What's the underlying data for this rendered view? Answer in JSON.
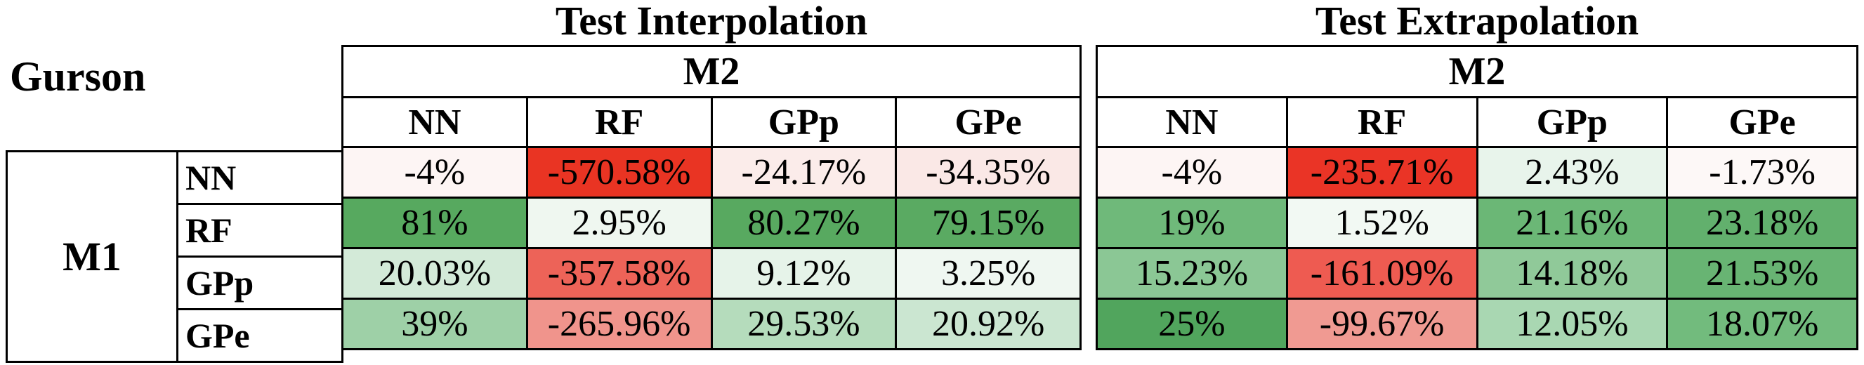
{
  "figure": {
    "model_label": "Gurson",
    "m1_label": "M1",
    "row_labels": [
      "NN",
      "RF",
      "GPp",
      "GPe"
    ]
  },
  "tables": [
    {
      "title": "Test Interpolation",
      "m2_label": "M2",
      "columns": [
        "NN",
        "RF",
        "GPp",
        "GPe"
      ],
      "rows": [
        {
          "label": "NN",
          "cells": [
            {
              "value": "-4%",
              "color": "#fdf5f4"
            },
            {
              "value": "-570.58%",
              "color": "#e93423"
            },
            {
              "value": "-24.17%",
              "color": "#fbecea"
            },
            {
              "value": "-34.35%",
              "color": "#fae8e6"
            }
          ]
        },
        {
          "label": "RF",
          "cells": [
            {
              "value": "81%",
              "color": "#57a95f"
            },
            {
              "value": "2.95%",
              "color": "#eff7f0"
            },
            {
              "value": "80.27%",
              "color": "#58a960"
            },
            {
              "value": "79.15%",
              "color": "#5aaa62"
            }
          ]
        },
        {
          "label": "GPp",
          "cells": [
            {
              "value": "20.03%",
              "color": "#d3ead8"
            },
            {
              "value": "-357.58%",
              "color": "#ed6358"
            },
            {
              "value": "9.12%",
              "color": "#e6f3e9"
            },
            {
              "value": "3.25%",
              "color": "#eff7f1"
            }
          ]
        },
        {
          "label": "GPe",
          "cells": [
            {
              "value": "39%",
              "color": "#9ed0a7"
            },
            {
              "value": "-265.96%",
              "color": "#f0948c"
            },
            {
              "value": "29.53%",
              "color": "#b5dcbc"
            },
            {
              "value": "20.92%",
              "color": "#cbe6d1"
            }
          ]
        }
      ]
    },
    {
      "title": "Test Extrapolation",
      "m2_label": "M2",
      "columns": [
        "NN",
        "RF",
        "GPp",
        "GPe"
      ],
      "rows": [
        {
          "label": "NN",
          "cells": [
            {
              "value": "-4%",
              "color": "#fdf5f4"
            },
            {
              "value": "-235.71%",
              "color": "#ea3426"
            },
            {
              "value": "2.43%",
              "color": "#e8f4eb"
            },
            {
              "value": "-1.73%",
              "color": "#fdf8f7"
            }
          ]
        },
        {
          "label": "RF",
          "cells": [
            {
              "value": "19%",
              "color": "#6fb97a"
            },
            {
              "value": "1.52%",
              "color": "#f2f9f3"
            },
            {
              "value": "21.16%",
              "color": "#6bb776"
            },
            {
              "value": "23.18%",
              "color": "#62b06d"
            }
          ]
        },
        {
          "label": "GPp",
          "cells": [
            {
              "value": "15.23%",
              "color": "#8bc795"
            },
            {
              "value": "-161.09%",
              "color": "#ee5b51"
            },
            {
              "value": "14.18%",
              "color": "#90c999"
            },
            {
              "value": "21.53%",
              "color": "#68b473"
            }
          ]
        },
        {
          "label": "GPe",
          "cells": [
            {
              "value": "25%",
              "color": "#51a55d"
            },
            {
              "value": "-99.67%",
              "color": "#f09a92"
            },
            {
              "value": "12.05%",
              "color": "#a9d7b2"
            },
            {
              "value": "18.07%",
              "color": "#72bb7d"
            }
          ]
        }
      ]
    }
  ],
  "chart_data": [
    {
      "type": "heatmap",
      "title": "Test Interpolation",
      "group_label": "Gurson",
      "row_axis": "M1",
      "col_axis": "M2",
      "rows": [
        "NN",
        "RF",
        "GPp",
        "GPe"
      ],
      "columns": [
        "NN",
        "RF",
        "GPp",
        "GPe"
      ],
      "values_percent": [
        [
          -4,
          -570.58,
          -24.17,
          -34.35
        ],
        [
          81,
          2.95,
          80.27,
          79.15
        ],
        [
          20.03,
          -357.58,
          9.12,
          3.25
        ],
        [
          39,
          -265.96,
          29.53,
          20.92
        ]
      ],
      "colormap": "red-white-green diverging (negative=red, positive=green)"
    },
    {
      "type": "heatmap",
      "title": "Test Extrapolation",
      "group_label": "Gurson",
      "row_axis": "M1",
      "col_axis": "M2",
      "rows": [
        "NN",
        "RF",
        "GPp",
        "GPe"
      ],
      "columns": [
        "NN",
        "RF",
        "GPp",
        "GPe"
      ],
      "values_percent": [
        [
          -4,
          -235.71,
          2.43,
          -1.73
        ],
        [
          19,
          1.52,
          21.16,
          23.18
        ],
        [
          15.23,
          -161.09,
          14.18,
          21.53
        ],
        [
          25,
          -99.67,
          12.05,
          18.07
        ]
      ],
      "colormap": "red-white-green diverging (negative=red, positive=green)"
    }
  ]
}
